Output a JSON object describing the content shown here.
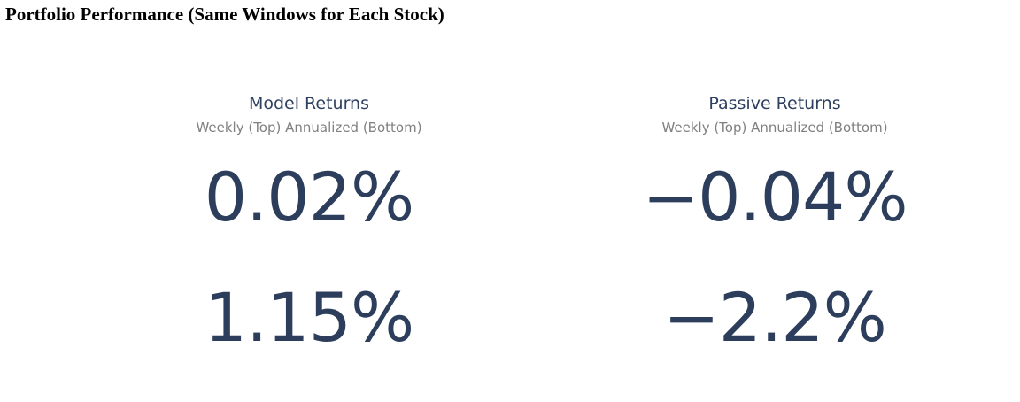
{
  "page": {
    "title": "Portfolio Performance (Same Windows for Each Stock)"
  },
  "panels": [
    {
      "title": "Model Returns",
      "subtitle": "Weekly (Top) Annualized (Bottom)",
      "weekly": "0.02%",
      "annualized": "1.15%"
    },
    {
      "title": "Passive Returns",
      "subtitle": "Weekly (Top) Annualized (Bottom)",
      "weekly": "−0.04%",
      "annualized": "−2.2%"
    }
  ],
  "colors": {
    "value": "#2c3e5b",
    "title": "#2e4060",
    "subtitle": "#808080"
  }
}
